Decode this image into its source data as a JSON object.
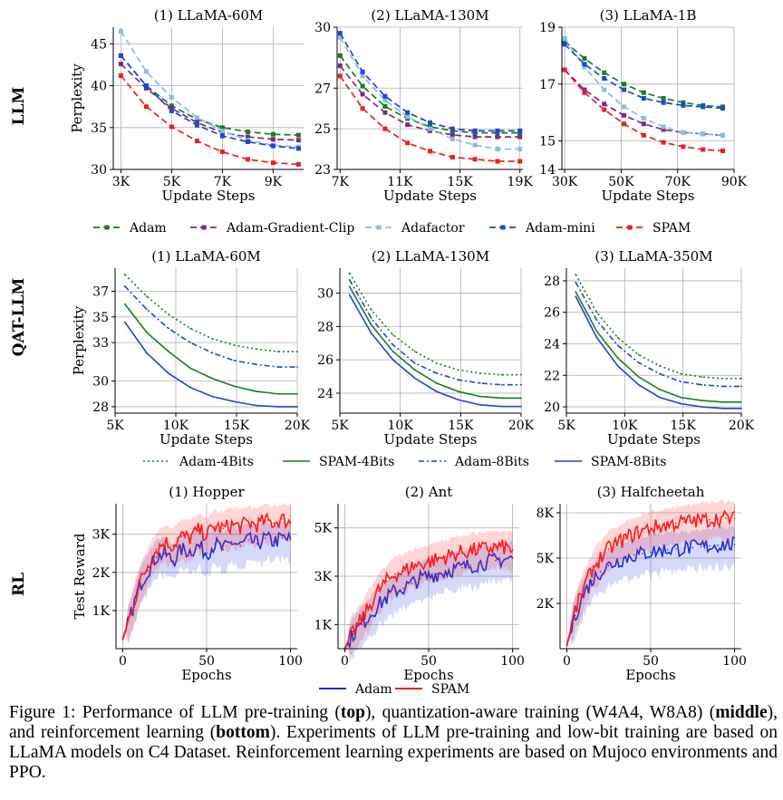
{
  "row_labels": [
    "LLM",
    "QAT-LLM",
    "RL"
  ],
  "legends": {
    "llm": [
      "Adam",
      "Adam-Gradient-Clip",
      "Adafactor",
      "Adam-mini",
      "SPAM"
    ],
    "qat": [
      "Adam-4Bits",
      "SPAM-4Bits",
      "Adam-8Bits",
      "SPAM-8Bits"
    ],
    "rl": [
      "Adam",
      "SPAM"
    ]
  },
  "colors": {
    "adam": "#1a7f1a",
    "clip": "#7b2a86",
    "adafactor": "#88bedd",
    "mini": "#1f45d8",
    "spam": "#e82020",
    "rl_spam": "#ff1a1a",
    "rl_adam": "#1c2fe0"
  },
  "caption": {
    "p1": "Figure 1:  Performance of LLM pre-training (",
    "b1": "top",
    "p2": "), quantization-aware training (W4A4, W8A8) (",
    "b2": "middle",
    "p3": "), and reinforcement learning (",
    "b3": "bottom",
    "p4": "). Experiments of LLM pre-training and low-bit training are based on LLaMA models on C4 Dataset. Reinforcement learning experiments are based on Mujoco environments and PPO."
  },
  "chart_data": [
    {
      "type": "line",
      "title": "(1) LLaMA-60M",
      "xlabel": "Update Steps",
      "ylabel": "Perplexity",
      "xlim": [
        2700,
        10200
      ],
      "ylim": [
        30,
        47
      ],
      "xticks": [
        3000,
        5000,
        7000,
        9000
      ],
      "xticklabels": [
        "3K",
        "5K",
        "7K",
        "9K"
      ],
      "yticks": [
        30,
        35,
        40,
        45
      ],
      "yticklabels": [
        "30",
        "35",
        "40",
        "45"
      ],
      "x": [
        3000,
        4000,
        5000,
        6000,
        7000,
        8000,
        9000,
        10000
      ],
      "series": [
        {
          "name": "Adam",
          "values": [
            43.6,
            40.0,
            37.6,
            36.0,
            35.0,
            34.5,
            34.2,
            34.1
          ]
        },
        {
          "name": "Adam-Gradient-Clip",
          "values": [
            42.6,
            39.7,
            37.3,
            35.6,
            34.4,
            33.9,
            33.6,
            33.5
          ]
        },
        {
          "name": "Adafactor",
          "values": [
            46.5,
            41.7,
            38.6,
            36.2,
            34.6,
            33.5,
            32.9,
            32.7
          ]
        },
        {
          "name": "Adam-mini",
          "values": [
            43.6,
            40.0,
            37.0,
            35.3,
            34.0,
            33.3,
            32.8,
            32.5
          ]
        },
        {
          "name": "SPAM",
          "values": [
            41.2,
            37.5,
            35.1,
            33.4,
            32.1,
            31.2,
            30.8,
            30.6
          ]
        }
      ]
    },
    {
      "type": "line",
      "title": "(2) LLaMA-130M",
      "xlabel": "Update Steps",
      "ylabel": "",
      "xlim": [
        6800,
        19200
      ],
      "ylim": [
        23,
        30
      ],
      "xticks": [
        7000,
        11000,
        15000,
        19000
      ],
      "xticklabels": [
        "7K",
        "11K",
        "15K",
        "19K"
      ],
      "yticks": [
        23,
        25,
        27,
        30
      ],
      "yticklabels": [
        "23",
        "25",
        "27",
        "30"
      ],
      "x": [
        7000,
        8500,
        10000,
        11500,
        13000,
        14500,
        16000,
        17500,
        19000
      ],
      "series": [
        {
          "name": "Adam",
          "values": [
            28.6,
            27.1,
            26.1,
            25.5,
            25.1,
            24.9,
            24.8,
            24.8,
            24.8
          ]
        },
        {
          "name": "Adam-Gradient-Clip",
          "values": [
            28.1,
            26.7,
            25.8,
            25.2,
            24.9,
            24.7,
            24.6,
            24.6,
            24.6
          ]
        },
        {
          "name": "Adafactor",
          "values": [
            29.5,
            27.6,
            26.4,
            25.6,
            25.0,
            24.5,
            24.2,
            24.0,
            24.0
          ]
        },
        {
          "name": "Adam-mini",
          "values": [
            29.7,
            27.8,
            26.6,
            25.8,
            25.3,
            25.0,
            24.9,
            24.9,
            24.9
          ]
        },
        {
          "name": "SPAM",
          "values": [
            27.6,
            26.0,
            25.0,
            24.3,
            23.9,
            23.6,
            23.5,
            23.4,
            23.4
          ]
        }
      ]
    },
    {
      "type": "line",
      "title": "(3) LLaMA-1B",
      "xlabel": "Update Steps",
      "ylabel": "",
      "xlim": [
        29000,
        90000
      ],
      "ylim": [
        14,
        19
      ],
      "xticks": [
        30000,
        50000,
        70000,
        90000
      ],
      "xticklabels": [
        "30K",
        "50K",
        "70K",
        "90K"
      ],
      "yticks": [
        14,
        15,
        17,
        19
      ],
      "yticklabels": [
        "14",
        "15",
        "17",
        "19"
      ],
      "x": [
        30000,
        37000,
        44000,
        51000,
        58000,
        65000,
        72000,
        79000,
        86000
      ],
      "series": [
        {
          "name": "Adam",
          "values": [
            18.5,
            17.9,
            17.4,
            17.0,
            16.7,
            16.5,
            16.35,
            16.25,
            16.2
          ]
        },
        {
          "name": "Adam-Gradient-Clip",
          "values": [
            17.5,
            16.8,
            16.3,
            15.9,
            15.6,
            15.4,
            15.3,
            15.25,
            15.2
          ]
        },
        {
          "name": "Adafactor",
          "values": [
            18.6,
            17.6,
            16.8,
            16.2,
            15.8,
            15.5,
            15.3,
            15.25,
            15.2
          ]
        },
        {
          "name": "Adam-mini",
          "values": [
            18.4,
            17.7,
            17.2,
            16.8,
            16.5,
            16.35,
            16.25,
            16.2,
            16.15
          ]
        },
        {
          "name": "SPAM",
          "values": [
            17.5,
            16.7,
            16.1,
            15.6,
            15.2,
            14.95,
            14.8,
            14.7,
            14.65
          ]
        }
      ]
    },
    {
      "type": "line",
      "title": "(1) LLaMA-60M",
      "xlabel": "Update Steps",
      "ylabel": "Perplexity",
      "xlim": [
        5000,
        20000
      ],
      "ylim": [
        27.5,
        38.8
      ],
      "xticks": [
        5000,
        10000,
        15000,
        20000
      ],
      "xticklabels": [
        "5K",
        "10K",
        "15K",
        "20K"
      ],
      "yticks": [
        28,
        30,
        33,
        35,
        37
      ],
      "yticklabels": [
        "28",
        "30",
        "33",
        "35",
        "37"
      ],
      "x": [
        5800,
        7600,
        9400,
        11200,
        13000,
        14800,
        16600,
        18400,
        20000
      ],
      "series": [
        {
          "name": "Adam-4Bits",
          "values": [
            38.3,
            36.6,
            35.2,
            34.1,
            33.3,
            32.8,
            32.5,
            32.3,
            32.3
          ]
        },
        {
          "name": "SPAM-4Bits",
          "values": [
            36.0,
            33.8,
            32.3,
            31.0,
            30.2,
            29.6,
            29.2,
            29.0,
            29.0
          ]
        },
        {
          "name": "Adam-8Bits",
          "values": [
            37.4,
            35.6,
            34.1,
            33.0,
            32.2,
            31.6,
            31.3,
            31.1,
            31.1
          ]
        },
        {
          "name": "SPAM-8Bits",
          "values": [
            34.6,
            32.2,
            30.6,
            29.5,
            28.8,
            28.4,
            28.1,
            28.0,
            28.0
          ]
        }
      ]
    },
    {
      "type": "line",
      "title": "(2) LLaMA-130M",
      "xlabel": "Update Steps",
      "ylabel": "",
      "xlim": [
        5000,
        20000
      ],
      "ylim": [
        22.8,
        31.5
      ],
      "xticks": [
        5000,
        10000,
        15000,
        20000
      ],
      "xticklabels": [
        "5K",
        "10K",
        "15K",
        "20K"
      ],
      "yticks": [
        24,
        26,
        28,
        30
      ],
      "yticklabels": [
        "24",
        "26",
        "28",
        "30"
      ],
      "x": [
        5800,
        7600,
        9400,
        11200,
        13000,
        14800,
        16600,
        18400,
        20000
      ],
      "series": [
        {
          "name": "Adam-4Bits",
          "values": [
            31.2,
            29.0,
            27.5,
            26.5,
            25.8,
            25.4,
            25.2,
            25.1,
            25.1
          ]
        },
        {
          "name": "SPAM-4Bits",
          "values": [
            30.4,
            28.1,
            26.5,
            25.4,
            24.6,
            24.1,
            23.8,
            23.7,
            23.7
          ]
        },
        {
          "name": "Adam-8Bits",
          "values": [
            30.8,
            28.5,
            26.9,
            25.8,
            25.2,
            24.8,
            24.6,
            24.5,
            24.5
          ]
        },
        {
          "name": "SPAM-8Bits",
          "values": [
            29.9,
            27.6,
            26.0,
            24.9,
            24.1,
            23.6,
            23.3,
            23.2,
            23.2
          ]
        }
      ]
    },
    {
      "type": "line",
      "title": "(3) LLaMA-350M",
      "xlabel": "Update Steps",
      "ylabel": "",
      "xlim": [
        5000,
        20000
      ],
      "ylim": [
        19.6,
        28.8
      ],
      "xticks": [
        5000,
        10000,
        15000,
        20000
      ],
      "xticklabels": [
        "5K",
        "10K",
        "15K",
        "20K"
      ],
      "yticks": [
        20,
        22,
        24,
        26,
        28
      ],
      "yticklabels": [
        "20",
        "22",
        "24",
        "26",
        "28"
      ],
      "x": [
        5800,
        7600,
        9400,
        11200,
        13000,
        14800,
        16600,
        18400,
        20000
      ],
      "series": [
        {
          "name": "Adam-4Bits",
          "values": [
            28.4,
            26.0,
            24.4,
            23.3,
            22.6,
            22.1,
            21.9,
            21.8,
            21.8
          ]
        },
        {
          "name": "SPAM-4Bits",
          "values": [
            27.3,
            24.8,
            23.1,
            21.9,
            21.1,
            20.6,
            20.4,
            20.3,
            20.3
          ]
        },
        {
          "name": "Adam-8Bits",
          "values": [
            27.9,
            25.5,
            23.9,
            22.8,
            22.1,
            21.6,
            21.4,
            21.3,
            21.3
          ]
        },
        {
          "name": "SPAM-8Bits",
          "values": [
            27.0,
            24.4,
            22.6,
            21.4,
            20.6,
            20.2,
            20.0,
            19.9,
            19.9
          ]
        }
      ]
    },
    {
      "type": "line",
      "title": "(1) Hopper",
      "xlabel": "Epochs",
      "ylabel": "Test Reward",
      "xlim": [
        -4,
        104
      ],
      "ylim": [
        0,
        3800
      ],
      "xticks": [
        0,
        50,
        100
      ],
      "xticklabels": [
        "0",
        "50",
        "100"
      ],
      "yticks": [
        1000,
        2000,
        3000
      ],
      "yticklabels": [
        "1K",
        "2K",
        "3K"
      ],
      "x": [
        0,
        5,
        10,
        15,
        20,
        25,
        30,
        35,
        40,
        45,
        50,
        55,
        60,
        65,
        70,
        75,
        80,
        85,
        90,
        95,
        100
      ],
      "series": [
        {
          "name": "Adam",
          "values": [
            250,
            900,
            1650,
            2050,
            2400,
            2500,
            2300,
            2600,
            2550,
            2700,
            2500,
            2750,
            2600,
            2800,
            2700,
            2850,
            2750,
            2900,
            2800,
            2900,
            2850
          ]
        },
        {
          "name": "SPAM",
          "values": [
            250,
            950,
            1700,
            2200,
            2600,
            2800,
            2700,
            2950,
            2900,
            3100,
            3000,
            3200,
            3150,
            3250,
            3200,
            3300,
            3250,
            3350,
            3300,
            3400,
            3300
          ]
        }
      ]
    },
    {
      "type": "line",
      "title": "(2) Ant",
      "xlabel": "Epochs",
      "ylabel": "",
      "xlim": [
        -4,
        104
      ],
      "ylim": [
        0,
        6000
      ],
      "xticks": [
        0,
        50,
        100
      ],
      "xticklabels": [
        "0",
        "50",
        "100"
      ],
      "yticks": [
        1000,
        3000,
        5000
      ],
      "yticklabels": [
        "1K",
        "3K",
        "5K"
      ],
      "x": [
        0,
        5,
        10,
        15,
        20,
        25,
        30,
        35,
        40,
        45,
        50,
        55,
        60,
        65,
        70,
        75,
        80,
        85,
        90,
        95,
        100
      ],
      "series": [
        {
          "name": "Adam",
          "values": [
            0,
            600,
            1000,
            1400,
            1800,
            2100,
            2400,
            2500,
            2700,
            2900,
            3000,
            3100,
            3200,
            3300,
            3350,
            3450,
            3500,
            3600,
            3650,
            3700,
            3750
          ]
        },
        {
          "name": "SPAM",
          "values": [
            0,
            700,
            1200,
            1800,
            2400,
            2800,
            3100,
            3200,
            3400,
            3500,
            3600,
            3700,
            3800,
            3900,
            4000,
            4050,
            4100,
            4150,
            4200,
            4200,
            4100
          ]
        }
      ]
    },
    {
      "type": "line",
      "title": "(3) Halfcheetah",
      "xlabel": "Epochs",
      "ylabel": "",
      "xlim": [
        -4,
        104
      ],
      "ylim": [
        -1000,
        8600
      ],
      "xticks": [
        0,
        50,
        100
      ],
      "xticklabels": [
        "0",
        "50",
        "100"
      ],
      "yticks": [
        2000,
        5000,
        8000
      ],
      "yticklabels": [
        "2K",
        "5K",
        "8K"
      ],
      "x": [
        0,
        5,
        10,
        15,
        20,
        25,
        30,
        35,
        40,
        45,
        50,
        55,
        60,
        65,
        70,
        75,
        80,
        85,
        90,
        95,
        100
      ],
      "series": [
        {
          "name": "Adam",
          "values": [
            -800,
            1200,
            2600,
            3500,
            4100,
            4500,
            4800,
            5000,
            5200,
            5300,
            5400,
            5500,
            5550,
            5600,
            5650,
            5700,
            5750,
            5800,
            5850,
            5900,
            5900
          ]
        },
        {
          "name": "SPAM",
          "values": [
            -800,
            1500,
            3000,
            4200,
            5000,
            5600,
            6000,
            6300,
            6600,
            6800,
            7000,
            7100,
            7200,
            7300,
            7400,
            7450,
            7500,
            7550,
            7600,
            7650,
            7600
          ]
        }
      ]
    }
  ]
}
